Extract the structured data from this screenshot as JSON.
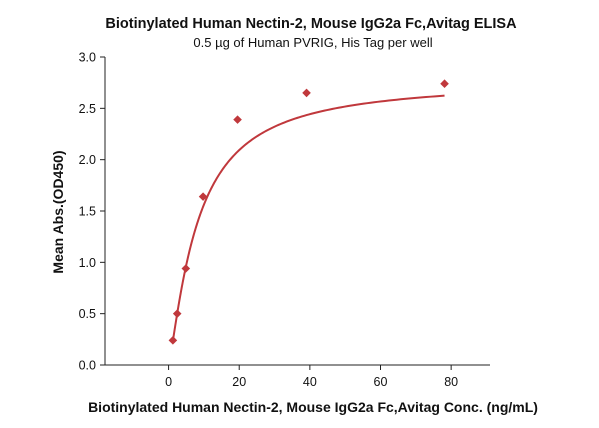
{
  "chart_data": {
    "type": "scatter",
    "title": "Biotinylated Human Nectin-2, Mouse IgG2a Fc,Avitag ELISA",
    "subtitle": "0.5 µg of Human PVRIG, His Tag per well",
    "xlabel": "Biotinylated Human Nectin-2, Mouse IgG2a Fc,Avitag Conc. (ng/mL)",
    "ylabel": "Mean Abs.(OD450)",
    "xlim": [
      -18,
      91
    ],
    "ylim": [
      0,
      3.0
    ],
    "x_ticks": [
      0,
      20,
      40,
      60,
      80
    ],
    "y_ticks": [
      "0.0",
      "0.5",
      "1.0",
      "1.5",
      "2.0",
      "2.5",
      "3.0"
    ],
    "grid": false,
    "series": [
      {
        "x": [
          1.22,
          2.44,
          4.88,
          9.77,
          19.53,
          39.06,
          78.13
        ],
        "y": [
          0.24,
          0.5,
          0.94,
          1.64,
          2.39,
          2.65,
          2.74
        ]
      }
    ],
    "fit_curve": {
      "type": "4PL",
      "bottom": 0.0,
      "top": 2.78,
      "ec50": 8.2,
      "hill": 1.25
    },
    "color": "#c0383c"
  }
}
